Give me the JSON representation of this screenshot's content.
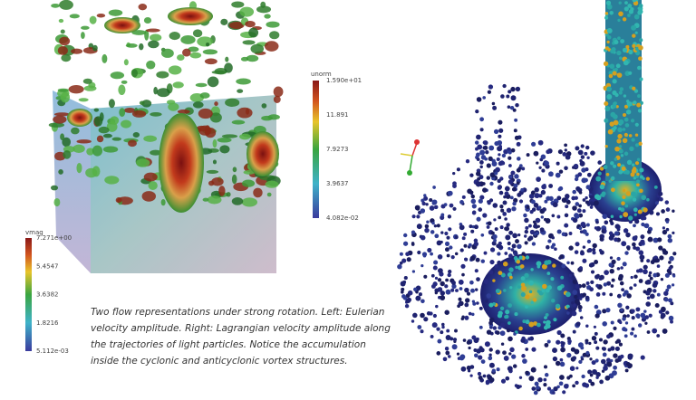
{
  "left_figure": {
    "colorbar": {
      "title": "vmag",
      "ticks": [
        "7.271e+00",
        "5.4547",
        "3.6382",
        "1.8216",
        "5.112e-03"
      ]
    }
  },
  "middle_colorbar": {
    "title": "unorm",
    "ticks": [
      "1.590e+01",
      "11.891",
      "7.9273",
      "3.9637",
      "4.082e-02"
    ]
  },
  "caption": {
    "lines": [
      "Two flow representations under strong rotation. Left: Eulerian",
      "velocity amplitude. Right: Lagrangian velocity amplitude along",
      "the trajectories of light particles. Notice the accumulation",
      "inside the cyclonic and anticyclonic vortex structures."
    ]
  }
}
